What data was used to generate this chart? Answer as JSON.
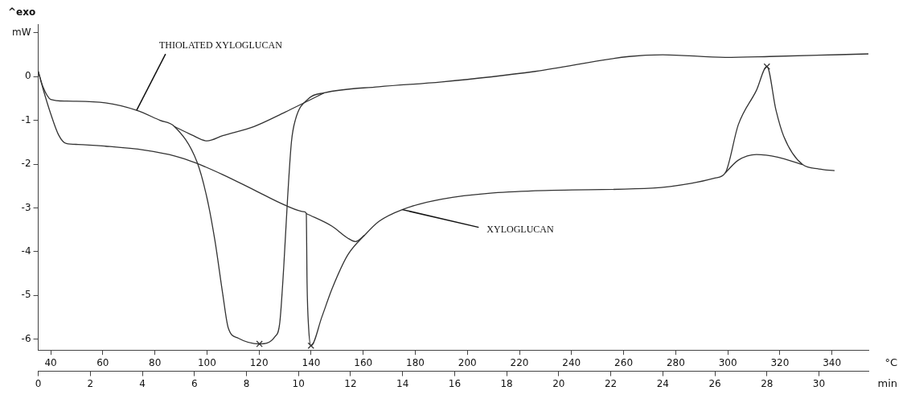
{
  "chart_data": {
    "type": "line",
    "xlabel": "min",
    "x2label": "°C",
    "xlim": [
      0,
      31.9
    ],
    "xticks": [
      0,
      2,
      4,
      6,
      8,
      10,
      12,
      14,
      16,
      18,
      20,
      22,
      24,
      26,
      28,
      30
    ],
    "x2lim": [
      35.2,
      354
    ],
    "x2ticks": [
      40,
      60,
      80,
      100,
      120,
      140,
      160,
      180,
      200,
      220,
      240,
      260,
      280,
      300,
      320,
      340
    ],
    "ylim": [
      -6.25,
      1.2
    ],
    "yticks": [
      -6,
      -5,
      -4,
      -3,
      -2,
      -1,
      0,
      {
        "value": 1,
        "label": "mW"
      }
    ],
    "grid": false,
    "legend": false,
    "line_style": "solid",
    "marker": "none",
    "series": [
      {
        "color": "#333333",
        "x": [
          0,
          0.18,
          0.48,
          1.08,
          2.58,
          3.78,
          4.68,
          5.23,
          6.1,
          6.49,
          6.79,
          7.09,
          7.3,
          7.69,
          8.5,
          9.1,
          9.28,
          9.43,
          9.58,
          9.73,
          9.88,
          10.39,
          10.99,
          13.09,
          15.5,
          19.1,
          22.7,
          24.0,
          26.4,
          28.1,
          31.9
        ],
        "values": [
          0.12,
          -0.23,
          -0.52,
          -0.56,
          -0.6,
          -0.77,
          -1.0,
          -1.14,
          -1.95,
          -2.79,
          -3.75,
          -4.97,
          -5.74,
          -5.98,
          -6.11,
          -5.94,
          -5.63,
          -4.39,
          -2.79,
          -1.49,
          -0.99,
          -0.5,
          -0.37,
          -0.23,
          -0.12,
          0.12,
          0.46,
          0.5,
          0.44,
          0.46,
          0.52
        ]
      },
      {
        "color": "#333333",
        "x": [
          5.23,
          5.89,
          6.49,
          7.09,
          8.29,
          9.49,
          10.69,
          10.99
        ],
        "values": [
          -1.14,
          -1.33,
          -1.47,
          -1.35,
          -1.14,
          -0.81,
          -0.46,
          -0.37
        ]
      },
      {
        "color": "#333333",
        "x": [
          0,
          0.18,
          0.48,
          0.78,
          1.08,
          1.53,
          2.58,
          4.08,
          5.29,
          6.04,
          7.09,
          8.29,
          9.49,
          10.24,
          10.3,
          10.33,
          10.39,
          10.48,
          10.9,
          11.29,
          11.89,
          12.55,
          13.09,
          13.99,
          15.5,
          19.1,
          23.6,
          25.1,
          26.0,
          26.4,
          26.9,
          27.6,
          28.0,
          28.35,
          28.65,
          29.37,
          30.0,
          30.6
        ],
        "values": [
          0.12,
          -0.27,
          -0.85,
          -1.33,
          -1.53,
          -1.55,
          -1.59,
          -1.68,
          -1.82,
          -1.97,
          -2.24,
          -2.59,
          -2.94,
          -3.09,
          -3.13,
          -4.72,
          -5.74,
          -6.15,
          -5.49,
          -4.85,
          -4.08,
          -3.62,
          -3.31,
          -3.04,
          -2.8,
          -2.61,
          -2.55,
          -2.44,
          -2.32,
          -2.2,
          -1.1,
          -0.31,
          0.23,
          -0.77,
          -1.37,
          -2.01,
          -2.11,
          -2.15
        ]
      },
      {
        "color": "#333333",
        "x": [
          10.3,
          11.29,
          11.89,
          12.19,
          12.55
        ],
        "values": [
          -3.13,
          -3.42,
          -3.69,
          -3.77,
          -3.62
        ]
      },
      {
        "color": "#333333",
        "x": [
          26.4,
          26.9,
          27.6,
          28.41,
          29.37
        ],
        "values": [
          -2.2,
          -1.91,
          -1.78,
          -1.84,
          -2.01
        ]
      },
      {
        "type": "scatter",
        "marker": "cross",
        "color": "#333333",
        "x": [
          8.5,
          10.48,
          28.0
        ],
        "values": [
          -6.11,
          -6.15,
          0.23
        ]
      }
    ],
    "annotations": [
      "^exo",
      {
        "text": "THIOLATED XYLOGLUCAN",
        "x": 3.78,
        "y": -0.77
      },
      {
        "text": "XYLOGLUCAN",
        "x": 13.99,
        "y": -3.04
      }
    ]
  }
}
